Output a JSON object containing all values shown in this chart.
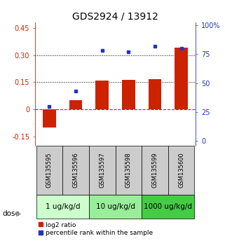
{
  "title": "GDS2924 / 13912",
  "samples": [
    "GSM135595",
    "GSM135596",
    "GSM135597",
    "GSM135598",
    "GSM135599",
    "GSM135600"
  ],
  "log2_ratio": [
    -0.1,
    0.05,
    0.16,
    0.165,
    0.168,
    0.34
  ],
  "percentile_rank": [
    30,
    43,
    78,
    77,
    82,
    80
  ],
  "dose_groups": [
    {
      "label": "1 ug/kg/d",
      "samples": [
        0,
        1
      ],
      "color": "#ccffcc"
    },
    {
      "label": "10 ug/kg/d",
      "samples": [
        2,
        3
      ],
      "color": "#99ee99"
    },
    {
      "label": "1000 ug/kg/d",
      "samples": [
        4,
        5
      ],
      "color": "#44cc44"
    }
  ],
  "ylim_left": [
    -0.2,
    0.48
  ],
  "ylim_right": [
    -4.267,
    102.4
  ],
  "yticks_left": [
    -0.15,
    0,
    0.15,
    0.3,
    0.45
  ],
  "yticks_right": [
    0,
    25,
    50,
    75,
    100
  ],
  "ytick_labels_left": [
    "-0.15",
    "0",
    "0.15",
    "0.30",
    "0.45"
  ],
  "ytick_labels_right": [
    "0",
    "25",
    "50",
    "75",
    "100%"
  ],
  "hlines": [
    0.15,
    0.3
  ],
  "bar_color": "#cc2200",
  "dot_color": "#2233cc",
  "zero_line_color": "#cc2200",
  "hline_color": "#000000",
  "legend_bar_label": "log2 ratio",
  "legend_dot_label": "percentile rank within the sample",
  "dose_label": "dose",
  "sample_bg_color": "#cccccc",
  "title_fontsize": 10,
  "tick_fontsize": 7,
  "sample_fontsize": 6,
  "dose_fontsize": 7.5
}
